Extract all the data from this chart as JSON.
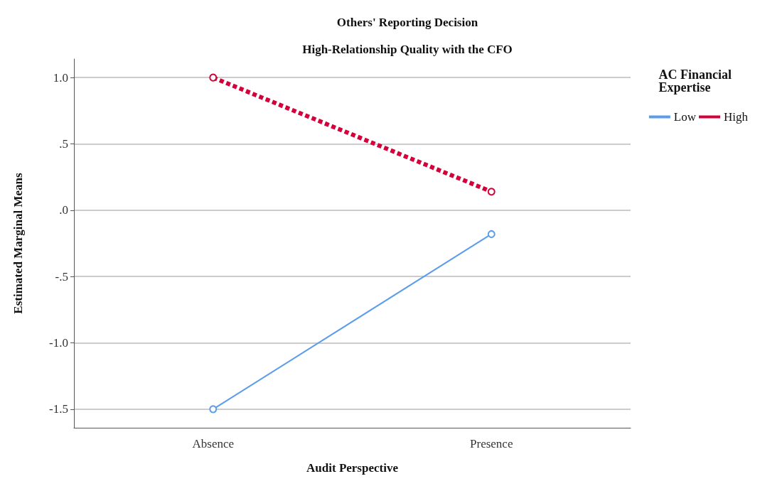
{
  "chart_data": {
    "type": "line",
    "title": "Others' Reporting Decision",
    "subtitle": "High-Relationship Quality with the CFO",
    "xlabel": "Audit Perspective",
    "ylabel": "Estimated Marginal Means",
    "legend_title": "AC Financial Expertise",
    "categories": [
      "Absence",
      "Presence"
    ],
    "series": [
      {
        "name": "Low",
        "color": "#5b9cec",
        "values": [
          -1.5,
          -0.18
        ],
        "line_style": "solid"
      },
      {
        "name": "High",
        "color": "#d5003a",
        "values": [
          1.0,
          0.14
        ],
        "line_style": "dashed"
      }
    ],
    "ylim": [
      -1.64,
      1.14
    ],
    "yticks": [
      {
        "value": -1.5,
        "label": "-1.5"
      },
      {
        "value": -1.0,
        "label": "-1.0"
      },
      {
        "value": -0.5,
        "label": "-.5"
      },
      {
        "value": 0,
        "label": ".0"
      },
      {
        "value": 0.5,
        "label": ".5"
      },
      {
        "value": 1.0,
        "label": "1.0"
      }
    ],
    "grid": "y",
    "legend": "top right",
    "marker": "circle"
  }
}
